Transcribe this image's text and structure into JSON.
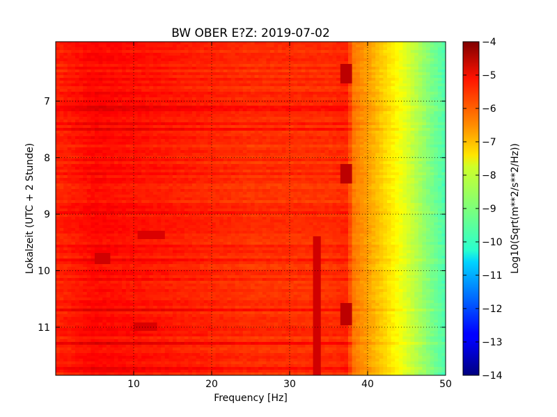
{
  "chart_data": {
    "type": "heatmap",
    "title": "BW OBER E?Z: 2019-07-02",
    "xlabel": "Frequency [Hz]",
    "ylabel": "Lokalzeit (UTC + 2 Stunde)",
    "colorbar_label": "Log10(Sqrt(m**2/s**2/Hz))",
    "xlim": [
      0,
      50
    ],
    "ylim": [
      5.95,
      11.85
    ],
    "y_inverted": true,
    "x_ticks": [
      10,
      20,
      30,
      40,
      50
    ],
    "x_tick_labels": [
      "10",
      "20",
      "30",
      "40",
      "50"
    ],
    "y_ticks": [
      7,
      8,
      9,
      10,
      11
    ],
    "y_tick_labels": [
      "7",
      "8",
      "9",
      "10",
      "11"
    ],
    "color_range": [
      -14,
      -4
    ],
    "colorbar_ticks": [
      -4,
      -5,
      -6,
      -7,
      -8,
      -9,
      -10,
      -11,
      -12,
      -13,
      -14
    ],
    "colorbar_tick_labels": [
      "−4",
      "−5",
      "−6",
      "−7",
      "−8",
      "−9",
      "−10",
      "−11",
      "−12",
      "−13",
      "−14"
    ],
    "colormap": "jet",
    "grid": true,
    "frequency_profile": {
      "frequency_hz": [
        0,
        5,
        10,
        15,
        20,
        25,
        30,
        35,
        37.5,
        38,
        40,
        42,
        44,
        46,
        48,
        50
      ],
      "level_log10": [
        -5.6,
        -5.3,
        -5.4,
        -5.5,
        -5.6,
        -5.7,
        -5.7,
        -5.7,
        -5.6,
        -6.4,
        -6.8,
        -7.3,
        -7.8,
        -8.4,
        -9.0,
        -9.5
      ]
    },
    "features": [
      {
        "type": "band",
        "x0": 36.5,
        "x1": 38,
        "y0": 6.35,
        "y1": 6.7,
        "level_log10": -4.6
      },
      {
        "type": "band",
        "x0": 36.5,
        "x1": 38,
        "y0": 8.1,
        "y1": 8.45,
        "level_log10": -4.6
      },
      {
        "type": "band",
        "x0": 36.5,
        "x1": 38,
        "y0": 10.55,
        "y1": 10.95,
        "level_log10": -4.6
      },
      {
        "type": "band",
        "x0": 33.2,
        "x1": 33.8,
        "y0": 9.4,
        "y1": 11.85,
        "level_log10": -4.8
      },
      {
        "type": "band",
        "x0": 10.5,
        "x1": 14,
        "y0": 9.3,
        "y1": 9.45,
        "level_log10": -4.9
      },
      {
        "type": "band",
        "x0": 10,
        "x1": 13,
        "y0": 10.9,
        "y1": 11.05,
        "level_log10": -4.9
      },
      {
        "type": "band",
        "x0": 5,
        "x1": 7,
        "y0": 9.7,
        "y1": 9.9,
        "level_log10": -4.8
      }
    ]
  }
}
